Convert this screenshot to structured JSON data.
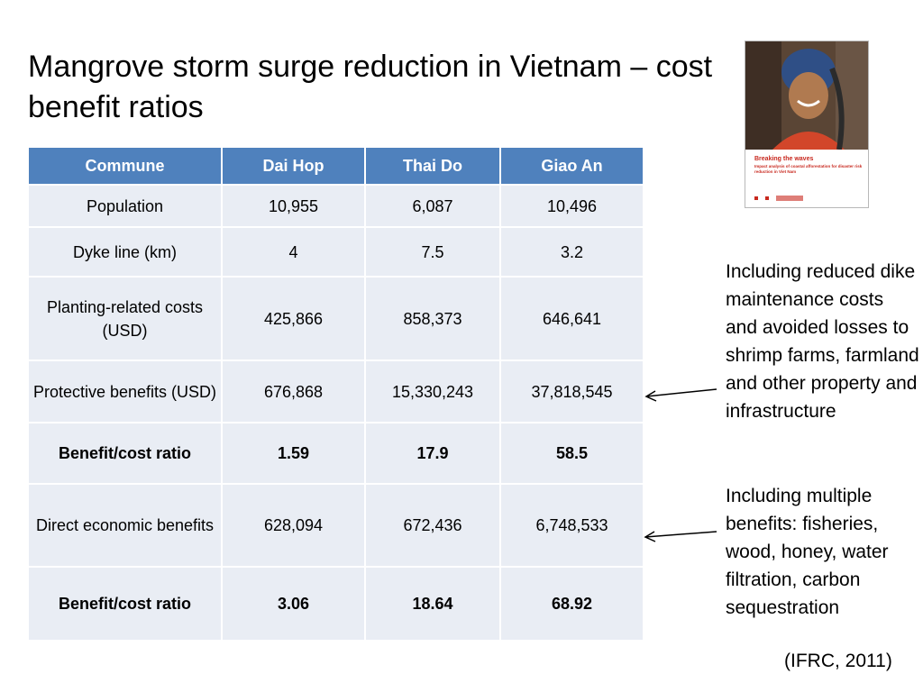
{
  "title": "Mangrove storm surge reduction in Vietnam – cost benefit ratios",
  "table": {
    "headers": [
      "Commune",
      "Dai Hop",
      "Thai Do",
      "Giao An"
    ],
    "rows": [
      [
        "Population",
        "10,955",
        "6,087",
        "10,496"
      ],
      [
        "Dyke line (km)",
        "4",
        "7.5",
        "3.2"
      ],
      [
        "Planting-related costs (USD)",
        "425,866",
        "858,373",
        "646,641"
      ],
      [
        "Protective benefits (USD)",
        "676,868",
        "15,330,243",
        "37,818,545"
      ],
      [
        "Benefit/cost ratio",
        "1.59",
        "17.9",
        "58.5"
      ],
      [
        "Direct economic benefits",
        "628,094",
        "672,436",
        "6,748,533"
      ],
      [
        "Benefit/cost ratio",
        "3.06",
        "18.64",
        "68.92"
      ]
    ]
  },
  "notes": {
    "protective": "Including reduced dike maintenance costs and avoided losses to shrimp farms, farmland and other property and infrastructure",
    "direct": "Including multiple benefits: fisheries, wood, honey, water filtration, carbon sequestration"
  },
  "citation": "(IFRC, 2011)",
  "cover": {
    "title": "Breaking the waves",
    "subtitle": "Impact analysis of coastal afforestation for disaster risk reduction in Viet Nam"
  },
  "colors": {
    "header_bg": "#4f81bd",
    "cell_bg": "#e9edf4",
    "cover_accent": "#c8281e"
  }
}
